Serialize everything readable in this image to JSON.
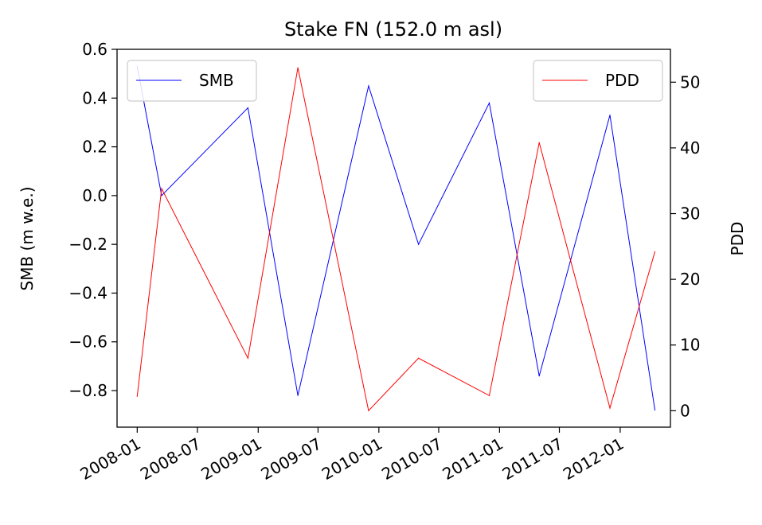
{
  "chart_data": {
    "type": "line",
    "title": "Stake FN (152.0 m asl)",
    "xlabel": "",
    "ylabel": "SMB (m w.e.)",
    "y2label": "PDD",
    "x_ticks": [
      "2008-01",
      "2008-07",
      "2009-01",
      "2009-07",
      "2010-01",
      "2010-07",
      "2011-01",
      "2011-07",
      "2012-01"
    ],
    "xlim": [
      "2007-11-01",
      "2012-06-01"
    ],
    "ylim": [
      -0.95,
      0.6
    ],
    "y_ticks": [
      0.6,
      0.4,
      0.2,
      0.0,
      -0.2,
      -0.4,
      -0.6,
      -0.8
    ],
    "y_tick_labels": [
      "0.6",
      "0.4",
      "0.2",
      "0.0",
      "−0.2",
      "−0.4",
      "−0.6",
      "−0.8"
    ],
    "y2lim": [
      -2.5,
      55
    ],
    "y2_ticks": [
      0,
      10,
      20,
      30,
      40,
      50
    ],
    "y2_tick_labels": [
      "0",
      "10",
      "20",
      "30",
      "40",
      "50"
    ],
    "grid": false,
    "legend": [
      {
        "name": "SMB",
        "position": "upper-left"
      },
      {
        "name": "PDD",
        "position": "upper-right"
      }
    ],
    "series": [
      {
        "name": "SMB",
        "axis": "left",
        "color": "#0000ff",
        "x": [
          "2008-01-01",
          "2008-03-15",
          "2008-12-01",
          "2009-05-01",
          "2009-12-01",
          "2010-05-01",
          "2010-12-01",
          "2011-05-01",
          "2011-12-01",
          "2012-04-15"
        ],
        "y": [
          0.53,
          0.0,
          0.36,
          -0.82,
          0.45,
          -0.2,
          0.38,
          -0.74,
          0.33,
          -0.88
        ]
      },
      {
        "name": "PDD",
        "axis": "right",
        "color": "#ff0000",
        "x": [
          "2008-01-01",
          "2008-03-15",
          "2008-12-01",
          "2009-05-01",
          "2009-12-01",
          "2010-05-01",
          "2010-12-01",
          "2011-05-01",
          "2011-12-01",
          "2012-04-15"
        ],
        "y": [
          2.2,
          33.8,
          8.0,
          52.2,
          0.0,
          8.0,
          2.3,
          40.8,
          0.4,
          24.2
        ]
      }
    ]
  }
}
